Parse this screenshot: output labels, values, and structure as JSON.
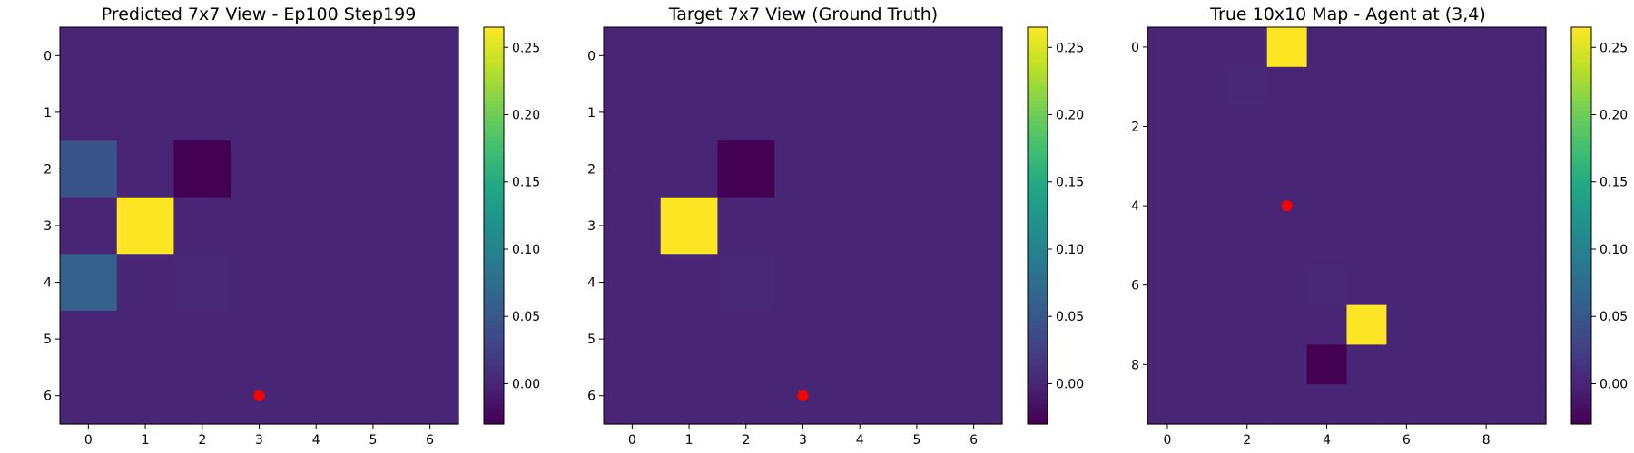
{
  "colormap": "viridis",
  "colors": {
    "marker": "#ff0000",
    "axes": "#000000",
    "background": "#ffffff"
  },
  "chart_data": [
    {
      "type": "heatmap",
      "title": "Predicted 7x7 View - Ep100 Step199",
      "rows": 7,
      "cols": 7,
      "xticks": [
        0,
        1,
        2,
        3,
        4,
        5,
        6
      ],
      "yticks": [
        0,
        1,
        2,
        3,
        4,
        5,
        6
      ],
      "values": [
        [
          0,
          0,
          0,
          0,
          0,
          0,
          0
        ],
        [
          0,
          0,
          0,
          0,
          0,
          0,
          0
        ],
        [
          0.045,
          0,
          -0.03,
          0,
          0,
          0,
          0
        ],
        [
          0,
          0.265,
          0,
          0,
          0,
          0,
          0
        ],
        [
          0.06,
          0,
          0.003,
          0,
          0,
          0,
          0
        ],
        [
          0,
          0,
          0,
          0,
          0,
          0,
          0
        ],
        [
          0,
          0,
          0,
          0,
          0,
          0,
          0
        ]
      ],
      "marker": {
        "x": 3,
        "y": 6
      },
      "colorbar": {
        "vmin": -0.03,
        "vmax": 0.265,
        "ticks": [
          0.0,
          0.05,
          0.1,
          0.15,
          0.2,
          0.25
        ],
        "tick_labels": [
          "0.00",
          "0.05",
          "0.10",
          "0.15",
          "0.20",
          "0.25"
        ]
      }
    },
    {
      "type": "heatmap",
      "title": "Target 7x7 View (Ground Truth)",
      "rows": 7,
      "cols": 7,
      "xticks": [
        0,
        1,
        2,
        3,
        4,
        5,
        6
      ],
      "yticks": [
        0,
        1,
        2,
        3,
        4,
        5,
        6
      ],
      "values": [
        [
          0,
          0,
          0,
          0,
          0,
          0,
          0
        ],
        [
          0,
          0,
          0,
          0,
          0,
          0,
          0
        ],
        [
          0,
          0,
          -0.03,
          0,
          0,
          0,
          0
        ],
        [
          0,
          0.265,
          0,
          0,
          0,
          0,
          0
        ],
        [
          0,
          0,
          0.003,
          0,
          0,
          0,
          0
        ],
        [
          0,
          0,
          0,
          0,
          0,
          0,
          0
        ],
        [
          0,
          0,
          0,
          0,
          0,
          0,
          0
        ]
      ],
      "marker": {
        "x": 3,
        "y": 6
      },
      "colorbar": {
        "vmin": -0.03,
        "vmax": 0.265,
        "ticks": [
          0.0,
          0.05,
          0.1,
          0.15,
          0.2,
          0.25
        ],
        "tick_labels": [
          "0.00",
          "0.05",
          "0.10",
          "0.15",
          "0.20",
          "0.25"
        ]
      }
    },
    {
      "type": "heatmap",
      "title": "True 10x10 Map - Agent at (3,4)",
      "rows": 10,
      "cols": 10,
      "xticks": [
        0,
        2,
        4,
        6,
        8
      ],
      "yticks": [
        0,
        2,
        4,
        6,
        8
      ],
      "values": [
        [
          0,
          0,
          0,
          0.265,
          0,
          0,
          0,
          0,
          0,
          0
        ],
        [
          0,
          0,
          0.003,
          0,
          0,
          0,
          0,
          0,
          0,
          0
        ],
        [
          0,
          0,
          0,
          0,
          0,
          0,
          0,
          0,
          0,
          0
        ],
        [
          0,
          0,
          0,
          0,
          0,
          0,
          0,
          0,
          0,
          0
        ],
        [
          0,
          0,
          0,
          0,
          0,
          0,
          0,
          0,
          0,
          0
        ],
        [
          0,
          0,
          0,
          0,
          0,
          0,
          0,
          0,
          0,
          0
        ],
        [
          0,
          0,
          0,
          0,
          0.003,
          0,
          0,
          0,
          0,
          0
        ],
        [
          0,
          0,
          0,
          0,
          0,
          0.265,
          0,
          0,
          0,
          0
        ],
        [
          0,
          0,
          0,
          0,
          -0.03,
          0,
          0,
          0,
          0,
          0
        ],
        [
          0,
          0,
          0,
          0,
          0,
          0,
          0,
          0,
          0,
          0
        ]
      ],
      "marker": {
        "x": 3,
        "y": 4
      },
      "colorbar": {
        "vmin": -0.03,
        "vmax": 0.265,
        "ticks": [
          0.0,
          0.05,
          0.1,
          0.15,
          0.2,
          0.25
        ],
        "tick_labels": [
          "0.00",
          "0.05",
          "0.10",
          "0.15",
          "0.20",
          "0.25"
        ]
      }
    }
  ]
}
